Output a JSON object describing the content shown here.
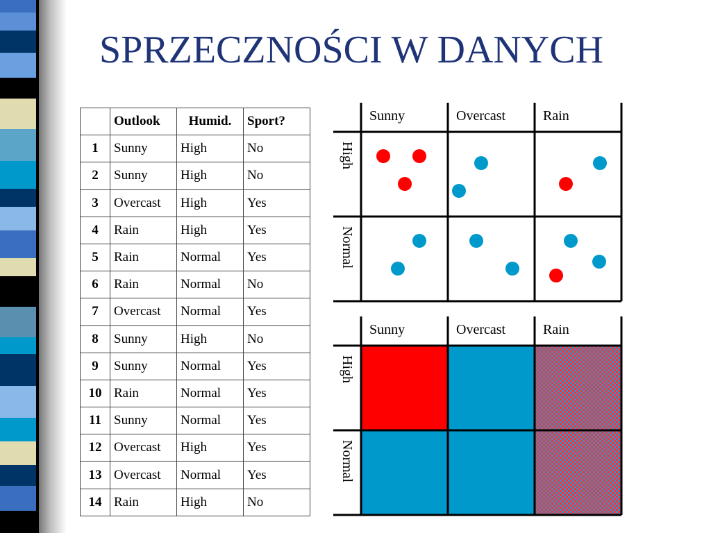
{
  "slide": {
    "title": "SPRZECZNOŚCI W DANYCH"
  },
  "table": {
    "headers": [
      "",
      "Outlook",
      "Humid.",
      "Sport?"
    ],
    "rows": [
      {
        "id": "1",
        "outlook": "Sunny",
        "humid": "High",
        "sport": "No"
      },
      {
        "id": "2",
        "outlook": "Sunny",
        "humid": "High",
        "sport": "No"
      },
      {
        "id": "3",
        "outlook": "Overcast",
        "humid": "High",
        "sport": "Yes"
      },
      {
        "id": "4",
        "outlook": "Rain",
        "humid": "High",
        "sport": "Yes"
      },
      {
        "id": "5",
        "outlook": "Rain",
        "humid": "Normal",
        "sport": "Yes"
      },
      {
        "id": "6",
        "outlook": "Rain",
        "humid": "Normal",
        "sport": "No"
      },
      {
        "id": "7",
        "outlook": "Overcast",
        "humid": "Normal",
        "sport": "Yes"
      },
      {
        "id": "8",
        "outlook": "Sunny",
        "humid": "High",
        "sport": "No"
      },
      {
        "id": "9",
        "outlook": "Sunny",
        "humid": "Normal",
        "sport": "Yes"
      },
      {
        "id": "10",
        "outlook": "Rain",
        "humid": "Normal",
        "sport": "Yes"
      },
      {
        "id": "11",
        "outlook": "Sunny",
        "humid": "Normal",
        "sport": "Yes"
      },
      {
        "id": "12",
        "outlook": "Overcast",
        "humid": "High",
        "sport": "Yes"
      },
      {
        "id": "13",
        "outlook": "Overcast",
        "humid": "Normal",
        "sport": "Yes"
      },
      {
        "id": "14",
        "outlook": "Rain",
        "humid": "High",
        "sport": "No"
      }
    ]
  },
  "grid": {
    "columns": [
      "Sunny",
      "Overcast",
      "Rain"
    ],
    "rows": [
      "High",
      "Normal"
    ]
  },
  "scatter": {
    "cells": [
      {
        "row": "High",
        "col": "Sunny",
        "points": [
          "No",
          "No",
          "No"
        ]
      },
      {
        "row": "High",
        "col": "Overcast",
        "points": [
          "Yes",
          "Yes"
        ]
      },
      {
        "row": "High",
        "col": "Rain",
        "points": [
          "No",
          "Yes"
        ]
      },
      {
        "row": "Normal",
        "col": "Sunny",
        "points": [
          "Yes",
          "Yes"
        ]
      },
      {
        "row": "Normal",
        "col": "Overcast",
        "points": [
          "Yes",
          "Yes"
        ]
      },
      {
        "row": "Normal",
        "col": "Rain",
        "points": [
          "Yes",
          "No",
          "Yes"
        ]
      }
    ]
  },
  "regions": {
    "cells": [
      {
        "row": "High",
        "col": "Sunny",
        "fill": "No"
      },
      {
        "row": "High",
        "col": "Overcast",
        "fill": "Yes"
      },
      {
        "row": "High",
        "col": "Rain",
        "fill": "mixed"
      },
      {
        "row": "Normal",
        "col": "Sunny",
        "fill": "Yes"
      },
      {
        "row": "Normal",
        "col": "Overcast",
        "fill": "Yes"
      },
      {
        "row": "Normal",
        "col": "Rain",
        "fill": "mixed"
      }
    ]
  },
  "colors": {
    "title": "#1f3377",
    "no": "#ff0000",
    "yes": "#0099cc",
    "line": "#000000"
  }
}
